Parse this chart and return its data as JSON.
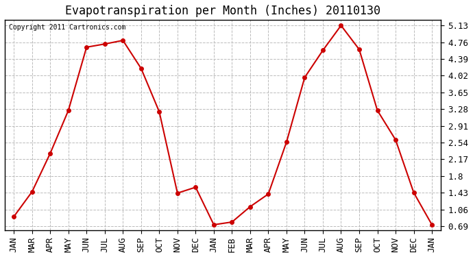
{
  "title": "Evapotranspiration per Month (Inches) 20110130",
  "copyright_text": "Copyright 2011 Cartronics.com",
  "x_labels": [
    "JAN",
    "MAR",
    "APR",
    "MAY",
    "JUN",
    "JUL",
    "AUG",
    "SEP",
    "OCT",
    "NOV",
    "DEC",
    "JAN",
    "FEB",
    "MAR",
    "APR",
    "MAY",
    "JUN",
    "JUL",
    "AUG",
    "SEP",
    "OCT",
    "NOV",
    "DEC",
    "JAN"
  ],
  "y_values": [
    0.9,
    1.45,
    2.3,
    3.25,
    4.65,
    4.72,
    4.8,
    4.18,
    3.22,
    1.42,
    1.55,
    0.72,
    0.78,
    1.12,
    1.4,
    2.55,
    3.98,
    4.58,
    5.13,
    4.6,
    3.25,
    2.6,
    1.43,
    0.72
  ],
  "line_color": "#cc0000",
  "marker_size": 4,
  "line_width": 1.5,
  "y_ticks": [
    0.69,
    1.06,
    1.43,
    1.8,
    2.17,
    2.54,
    2.91,
    3.28,
    3.65,
    4.02,
    4.39,
    4.76,
    5.13
  ],
  "ylim": [
    0.6,
    5.25
  ],
  "background_color": "#ffffff",
  "grid_color": "#bbbbbb",
  "title_fontsize": 12,
  "tick_fontsize": 9,
  "copyright_fontsize": 7
}
